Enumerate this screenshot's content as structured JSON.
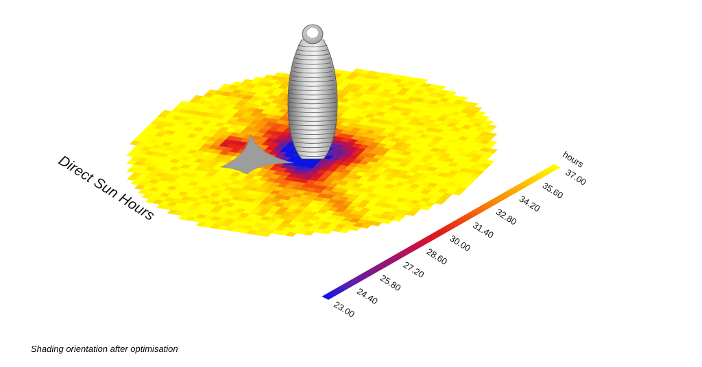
{
  "figure": {
    "title": "Direct Sun Hours",
    "caption": "Shading orientation after optimisation"
  },
  "legend": {
    "unit": "hours",
    "min": 23.0,
    "max": 37.0,
    "ticks": [
      "23.00",
      "24.40",
      "25.80",
      "27.20",
      "28.60",
      "30.00",
      "31.40",
      "32.80",
      "34.20",
      "35.60",
      "37.00"
    ],
    "color_stops": [
      "#0a14e6",
      "#5a1fb0",
      "#7a1a88",
      "#a3146a",
      "#c8103f",
      "#e41a1c",
      "#f24a10",
      "#f87b08",
      "#fca305",
      "#ffd000",
      "#ffff00"
    ]
  },
  "chart_data": {
    "type": "heatmap",
    "title": "Direct Sun Hours",
    "unit": "hours",
    "scale_range": [
      23.0,
      37.0
    ]
  }
}
